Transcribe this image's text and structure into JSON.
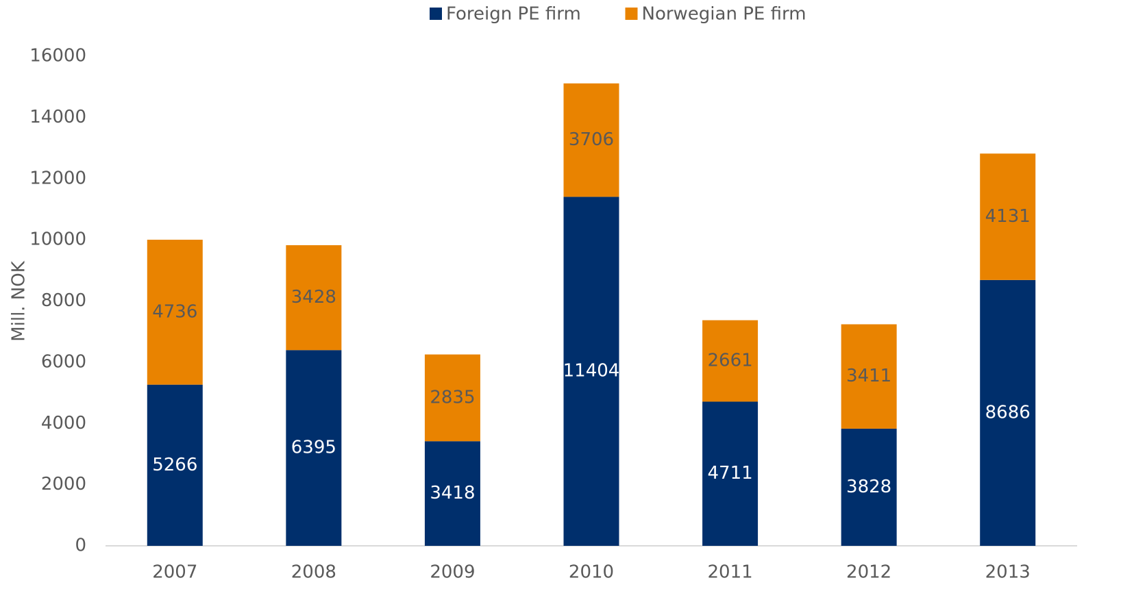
{
  "chart_data": {
    "type": "stacked_bar",
    "categories": [
      "2007",
      "2008",
      "2009",
      "2010",
      "2011",
      "2012",
      "2013"
    ],
    "series": [
      {
        "name": "Foreign PE firm",
        "color": "#002f6c",
        "label_color": "#ffffff",
        "values": [
          5266,
          6395,
          3418,
          11404,
          4711,
          3828,
          8686
        ]
      },
      {
        "name": "Norwegian PE firm",
        "color": "#e98300",
        "label_color": "#595959",
        "values": [
          4736,
          3428,
          2835,
          3706,
          2661,
          3411,
          4131
        ]
      }
    ],
    "y_label": "Mill. NOK",
    "ylim": [
      0,
      16000
    ],
    "yticks": [
      0,
      2000,
      4000,
      6000,
      8000,
      10000,
      12000,
      14000,
      16000
    ],
    "grid": false,
    "legend": "top"
  }
}
